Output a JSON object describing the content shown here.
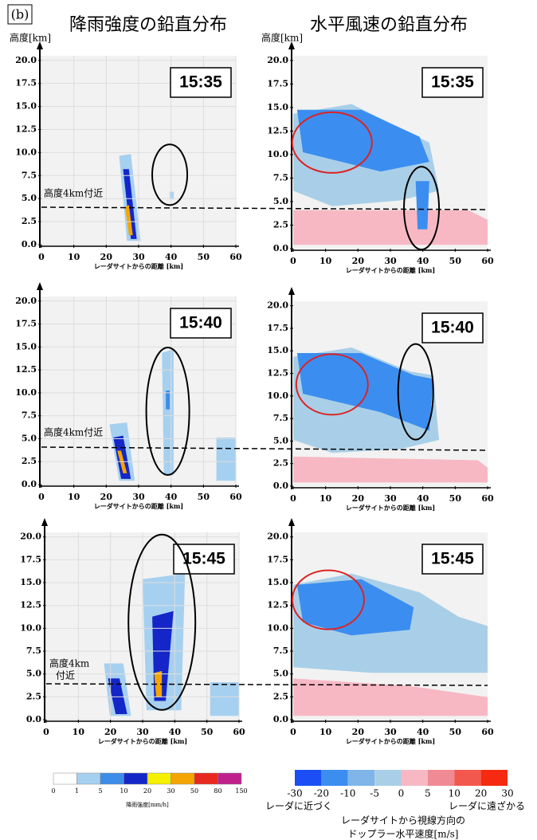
{
  "figure_label": "(b)",
  "column_titles": [
    "降雨強度の鉛直分布",
    "水平風速の鉛直分布"
  ],
  "chart_data": [
    {
      "type": "radar",
      "title": "15:35",
      "ylabel": "高度[km]",
      "xlabel": "レーダサイトからの距離 [km]",
      "annotation": [
        "高度4km付近"
      ],
      "grid": true,
      "xlim": [
        0,
        60
      ],
      "ylim": [
        0,
        20.5
      ],
      "xticks": [
        0,
        10,
        20,
        30,
        40,
        50,
        60
      ],
      "yticks": [
        {
          "value": 0,
          "label": "0.0"
        },
        {
          "value": 2.5,
          "label": "2.5"
        },
        {
          "value": 5,
          "label": "5.0"
        },
        {
          "value": 7.5,
          "label": "7.5"
        },
        {
          "value": 10,
          "label": "10.0"
        },
        {
          "value": 12.5,
          "label": "12.5"
        },
        {
          "value": 15,
          "label": "15.0"
        },
        {
          "value": 17.5,
          "label": "17.5"
        },
        {
          "value": 20,
          "label": "20.0"
        }
      ]
    },
    {
      "type": "radar",
      "title": "15:35",
      "ylabel": "高度[km]",
      "xlabel": "レーダサイトからの距離 [km]",
      "grid": false,
      "xlim": [
        0,
        60
      ],
      "ylim": [
        0,
        20.5
      ],
      "xticks": [
        0,
        10,
        20,
        30,
        40,
        50,
        60
      ],
      "yticks": [
        {
          "value": 0,
          "label": "0.0"
        },
        {
          "value": 2.5,
          "label": "2.5"
        },
        {
          "value": 5,
          "label": "5.0"
        },
        {
          "value": 7.5,
          "label": "7.5"
        },
        {
          "value": 10,
          "label": "10.0"
        },
        {
          "value": 12.5,
          "label": "12.5"
        },
        {
          "value": 15,
          "label": "15.0"
        },
        {
          "value": 17.5,
          "label": "17.5"
        },
        {
          "value": 20,
          "label": "20.0"
        }
      ]
    },
    {
      "type": "radar",
      "title": "15:40",
      "xlabel": "レーダサイトからの距離 [km]",
      "annotation": [
        "高度4km付近"
      ],
      "grid": true,
      "xlim": [
        0,
        60
      ],
      "ylim": [
        0,
        20.5
      ],
      "xticks": [
        0,
        10,
        20,
        30,
        40,
        50,
        60
      ],
      "yticks": [
        {
          "value": 0,
          "label": "0.0"
        },
        {
          "value": 2.5,
          "label": "2.5"
        },
        {
          "value": 5,
          "label": "5.0"
        },
        {
          "value": 7.5,
          "label": "7.5"
        },
        {
          "value": 10,
          "label": "10.0"
        },
        {
          "value": 12.5,
          "label": "12.5"
        },
        {
          "value": 15,
          "label": "15.0"
        },
        {
          "value": 17.5,
          "label": "17.5"
        },
        {
          "value": 20,
          "label": "20.0"
        }
      ]
    },
    {
      "type": "radar",
      "title": "15:40",
      "xlabel": "レーダサイトからの距離 [km]",
      "grid": false,
      "xlim": [
        0,
        60
      ],
      "ylim": [
        0,
        20.5
      ],
      "xticks": [
        0,
        10,
        20,
        30,
        40,
        50,
        60
      ],
      "yticks": [
        {
          "value": 0,
          "label": "0.0"
        },
        {
          "value": 2.5,
          "label": "2.5"
        },
        {
          "value": 5,
          "label": "5.0"
        },
        {
          "value": 7.5,
          "label": "7.5"
        },
        {
          "value": 10,
          "label": "10.0"
        },
        {
          "value": 12.5,
          "label": "12.5"
        },
        {
          "value": 15,
          "label": "15.0"
        },
        {
          "value": 17.5,
          "label": "17.5"
        },
        {
          "value": 20,
          "label": "20.0"
        }
      ]
    },
    {
      "type": "radar",
      "title": "15:45",
      "xlabel": "レーダサイトからの距離 [km]",
      "annotation": [
        "高度4km",
        "付近"
      ],
      "grid": true,
      "xlim": [
        0,
        60
      ],
      "ylim": [
        0,
        20.5
      ],
      "xticks": [
        0,
        10,
        20,
        30,
        40,
        50,
        60
      ],
      "yticks": [
        {
          "value": 0,
          "label": "0.0"
        },
        {
          "value": 2.5,
          "label": "2.5"
        },
        {
          "value": 5,
          "label": "5.0"
        },
        {
          "value": 7.5,
          "label": "7.5"
        },
        {
          "value": 10,
          "label": "10.0"
        },
        {
          "value": 12.5,
          "label": "12.5"
        },
        {
          "value": 15,
          "label": "15.0"
        },
        {
          "value": 17.5,
          "label": "17.5"
        },
        {
          "value": 20,
          "label": "20.0"
        }
      ]
    },
    {
      "type": "radar",
      "title": "15:45",
      "xlabel": "レーダサイトからの距離 [km]",
      "grid": false,
      "xlim": [
        0,
        60
      ],
      "ylim": [
        0,
        20.5
      ],
      "xticks": [
        0,
        10,
        20,
        30,
        40,
        50,
        60
      ],
      "yticks": [
        {
          "value": 0,
          "label": "0.0"
        },
        {
          "value": 2.5,
          "label": "2.5"
        },
        {
          "value": 5,
          "label": "5.0"
        },
        {
          "value": 7.5,
          "label": "7.5"
        },
        {
          "value": 10,
          "label": "10.0"
        },
        {
          "value": 12.5,
          "label": "12.5"
        },
        {
          "value": 15,
          "label": "15.0"
        },
        {
          "value": 17.5,
          "label": "17.5"
        },
        {
          "value": 20,
          "label": "20.0"
        }
      ]
    }
  ],
  "colorbars": [
    {
      "ticks": [
        0,
        1,
        5,
        10,
        20,
        30,
        50,
        80,
        150
      ],
      "colors": [
        "#ffffff",
        "#a6d0f0",
        "#3c8ce8",
        "#1426c8",
        "#f5f000",
        "#f5a500",
        "#e8281e",
        "#c0208c"
      ],
      "label": "降雨強度[mm/h]"
    },
    {
      "ticks": [
        -30,
        -20,
        -10,
        -5,
        0,
        5,
        10,
        20,
        30
      ],
      "colors": [
        "#1b4ff5",
        "#3b8ef0",
        "#7fb5e8",
        "#a9cfe8",
        "#f7b8c4",
        "#f08a94",
        "#f2584e",
        "#f52a10"
      ],
      "left_label": "レーダに近づく",
      "right_label": "レーダに遠ざかる",
      "title": [
        "レーダサイトから視線方向の",
        "ドップラー水平速度[m/s]"
      ]
    }
  ]
}
